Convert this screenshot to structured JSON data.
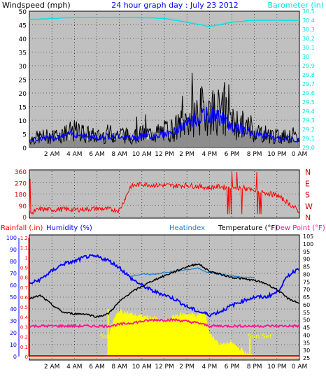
{
  "header": {
    "title": "24 hour graph day : July 23 2012",
    "left_label": "Windspeed (mph)",
    "right_label": "Barometer (in)"
  },
  "colors": {
    "background": "#ffffff",
    "plot_bg": "#c0c0c0",
    "wind": "#000000",
    "wind_avg": "#0000ff",
    "wind_gust_shade": "#808080",
    "barometer": "#00e5e5",
    "wind_dir": "#ff0000",
    "direction_label": "#cc0000",
    "rainfall": "#ff0000",
    "humidity": "#0000ff",
    "heatindex": "#1a7fd0",
    "temperature": "#000000",
    "dewpoint": "#ff1493",
    "solar": "#ffff00",
    "title": "#0000ff"
  },
  "x_ticks": [
    "2 AM",
    "4 AM",
    "6 AM",
    "8 AM",
    "10 AM",
    "12 PM",
    "2 PM",
    "4 PM",
    "6 PM",
    "8 PM",
    "10 PM",
    "0 AM"
  ],
  "panel1": {
    "wind_axis": [
      "0",
      "5",
      "10",
      "15",
      "20",
      "25",
      "30",
      "35",
      "40",
      "45",
      "50"
    ],
    "baro_axis": [
      "29.0",
      "29.1",
      "29.2",
      "29.3",
      "29.4",
      "29.5",
      "29.6",
      "29.7",
      "29.8",
      "29.9",
      "30",
      "30.1",
      "30.2",
      "30.3",
      "30.4",
      "30.5"
    ]
  },
  "panel2": {
    "dir_axis": [
      "0",
      "90",
      "180",
      "270",
      "360"
    ],
    "compass": [
      "N",
      "W",
      "S",
      "E",
      "N"
    ]
  },
  "panel3": {
    "label_rainfall": "Rainfall (.in)",
    "label_humidity": "Humidity (%)",
    "label_heatindex": "Heatindex",
    "label_temperature": "Temperature (°F)",
    "label_dewpoint": "Dew Point (°F)",
    "rain_axis": [
      "0",
      "0.1",
      "0.2",
      "0.3",
      "0.4",
      "0.5",
      "0.6",
      "0.7",
      "0.8",
      "0.9",
      "1",
      "1.1",
      "1.2"
    ],
    "hum_axis": [
      "0",
      "10",
      "20",
      "30",
      "40",
      "50",
      "60",
      "70",
      "80",
      "90",
      "100"
    ],
    "temp_axis": [
      "25",
      "30",
      "35",
      "40",
      "45",
      "50",
      "55",
      "60",
      "65",
      "70",
      "75",
      "80",
      "85",
      "90",
      "95",
      "100",
      "105"
    ],
    "sunrise_label": "Sun Rise",
    "sunset_label": "Sun Set"
  },
  "chart_data": [
    {
      "type": "line",
      "title": "24 hour graph day : July 23 2012",
      "x_hours": [
        0,
        2,
        4,
        6,
        8,
        10,
        12,
        14,
        16,
        18,
        20,
        22,
        24
      ],
      "series": [
        {
          "name": "Windspeed (mph)",
          "axis": "left",
          "ylim": [
            0,
            50
          ],
          "x": [
            0,
            1,
            2,
            3,
            4,
            5,
            6,
            7,
            8,
            9,
            10,
            11,
            12,
            13,
            14,
            15,
            16,
            17,
            18,
            19,
            20,
            21,
            22,
            23,
            24
          ],
          "values": [
            3,
            4,
            4,
            5,
            6,
            5,
            4,
            5,
            5,
            4,
            5,
            5,
            6,
            7,
            10,
            13,
            14,
            13,
            9,
            8,
            6,
            5,
            4,
            4,
            3
          ]
        },
        {
          "name": "Barometer (in)",
          "axis": "right",
          "ylim": [
            29.0,
            30.5
          ],
          "x": [
            0,
            2,
            4,
            6,
            8,
            10,
            12,
            14,
            16,
            18,
            20,
            22,
            24
          ],
          "values": [
            30.41,
            30.42,
            30.43,
            30.43,
            30.43,
            30.43,
            30.42,
            30.38,
            30.33,
            30.38,
            30.4,
            30.4,
            30.4
          ]
        }
      ]
    },
    {
      "type": "scatter",
      "ylabel": "",
      "ylim": [
        0,
        360
      ],
      "series": [
        {
          "name": "Wind direction",
          "x": [
            0,
            1,
            2,
            3,
            4,
            5,
            6,
            7,
            8,
            9,
            10,
            11,
            12,
            13,
            14,
            15,
            16,
            17,
            18,
            19,
            20,
            21,
            22,
            23,
            24
          ],
          "values": [
            30,
            60,
            55,
            60,
            55,
            60,
            65,
            60,
            50,
            240,
            260,
            250,
            250,
            245,
            250,
            240,
            230,
            240,
            220,
            230,
            200,
            190,
            170,
            110,
            40
          ]
        }
      ]
    },
    {
      "type": "line",
      "x_hours": [
        0,
        24
      ],
      "series": [
        {
          "name": "Humidity (%)",
          "axis": "humidity",
          "ylim": [
            0,
            100
          ],
          "x": [
            0,
            1,
            2,
            3,
            4,
            5,
            6,
            7,
            8,
            9,
            10,
            11,
            12,
            13,
            14,
            15,
            16,
            17,
            18,
            19,
            20,
            21,
            22,
            23,
            24
          ],
          "values": [
            61,
            65,
            72,
            78,
            80,
            84,
            84,
            81,
            75,
            66,
            60,
            55,
            52,
            48,
            42,
            38,
            35,
            38,
            43,
            47,
            50,
            50,
            54,
            68,
            75
          ]
        },
        {
          "name": "Temperature (°F)",
          "axis": "temp",
          "ylim": [
            25,
            105
          ],
          "x": [
            0,
            1,
            2,
            3,
            4,
            5,
            6,
            7,
            8,
            9,
            10,
            11,
            12,
            13,
            14,
            15,
            16,
            17,
            18,
            19,
            20,
            21,
            22,
            23,
            24
          ],
          "values": [
            64,
            66,
            60,
            55,
            54,
            54,
            52,
            54,
            62,
            68,
            72,
            76,
            79,
            82,
            85,
            87,
            82,
            80,
            78,
            77,
            76,
            74,
            70,
            64,
            61
          ]
        },
        {
          "name": "Heatindex",
          "axis": "temp",
          "ylim": [
            25,
            105
          ],
          "x": [
            9,
            10,
            11,
            12,
            13,
            14,
            15,
            16,
            17,
            18,
            19,
            20
          ],
          "values": [
            79,
            80,
            80,
            81,
            82,
            83,
            84,
            81,
            80,
            79,
            78,
            78
          ]
        },
        {
          "name": "Dew Point (°F)",
          "axis": "temp",
          "ylim": [
            25,
            105
          ],
          "x": [
            0,
            1,
            2,
            3,
            4,
            5,
            6,
            7,
            8,
            9,
            10,
            11,
            12,
            13,
            14,
            15,
            16,
            17,
            18,
            19,
            20,
            21,
            22,
            23,
            24
          ],
          "values": [
            46,
            46,
            46,
            46,
            46,
            46,
            46,
            46,
            47,
            48,
            49,
            50,
            50,
            50,
            49,
            48,
            46,
            46,
            46,
            46,
            46,
            46,
            46,
            46,
            46
          ]
        },
        {
          "name": "Solar",
          "axis": "humidity",
          "ylim": [
            0,
            100
          ],
          "x": [
            6.9,
            7.1,
            7.5,
            8,
            9,
            10,
            11,
            12,
            13,
            14,
            15,
            15.6,
            16,
            17,
            18,
            18.5,
            19,
            19.5,
            20,
            21,
            22,
            23,
            24
          ],
          "values": [
            0,
            20,
            31,
            39,
            36,
            34,
            33,
            29,
            35,
            36,
            35,
            38,
            20,
            10,
            12,
            8,
            5,
            2,
            0,
            0,
            0,
            0,
            0
          ]
        },
        {
          "name": "Rainfall (.in)",
          "axis": "rain",
          "ylim": [
            0,
            1.2
          ],
          "x": [
            0,
            24
          ],
          "values": [
            0,
            0
          ]
        }
      ]
    }
  ]
}
